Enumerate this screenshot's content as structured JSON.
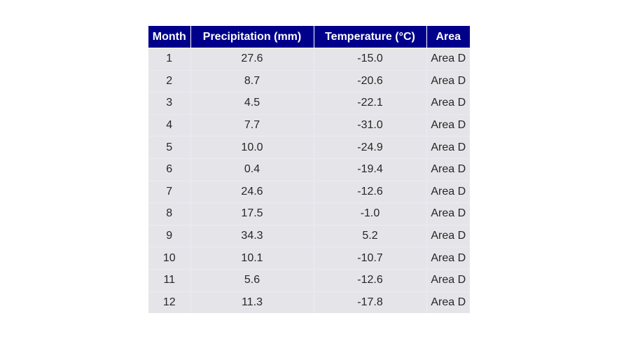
{
  "chart_data": {
    "type": "table",
    "columns": [
      "Month",
      "Precipitation (mm)",
      "Temperature (°C)",
      "Area"
    ],
    "rows": [
      [
        "1",
        "27.6",
        "-15.0",
        "Area D"
      ],
      [
        "2",
        "8.7",
        "-20.6",
        "Area D"
      ],
      [
        "3",
        "4.5",
        "-22.1",
        "Area D"
      ],
      [
        "4",
        "7.7",
        "-31.0",
        "Area D"
      ],
      [
        "5",
        "10.0",
        "-24.9",
        "Area D"
      ],
      [
        "6",
        "0.4",
        "-19.4",
        "Area D"
      ],
      [
        "7",
        "24.6",
        "-12.6",
        "Area D"
      ],
      [
        "8",
        "17.5",
        "-1.0",
        "Area D"
      ],
      [
        "9",
        "34.3",
        "5.2",
        "Area D"
      ],
      [
        "10",
        "10.1",
        "-10.7",
        "Area D"
      ],
      [
        "11",
        "5.6",
        "-12.6",
        "Area D"
      ],
      [
        "12",
        "11.3",
        "-17.8",
        "Area D"
      ]
    ]
  },
  "colors": {
    "header_bg": "#00008b",
    "header_text": "#ffffff",
    "cell_bg": "#e5e5e9",
    "cell_text": "#262626"
  }
}
